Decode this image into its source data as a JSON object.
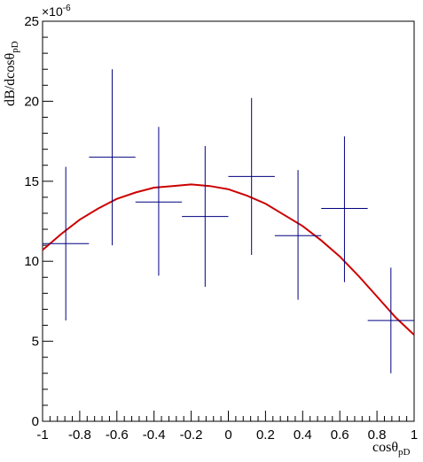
{
  "chart_data": {
    "type": "scatter",
    "xlabel_main": "cosθ",
    "xlabel_sub": "pD",
    "ylabel_main": "dB/dcosθ",
    "ylabel_sub": "pD",
    "y_exponent": "×10",
    "y_exponent_power": "-6",
    "xlim": [
      -1,
      1
    ],
    "ylim": [
      0,
      25
    ],
    "x_ticks": [
      -1,
      -0.8,
      -0.6,
      -0.4,
      -0.2,
      0,
      0.2,
      0.4,
      0.6,
      0.8,
      1
    ],
    "x_tick_labels": [
      "-1",
      "-0.8",
      "-0.6",
      "-0.4",
      "-0.2",
      "0",
      "0.2",
      "0.4",
      "0.6",
      "0.8",
      "1"
    ],
    "y_ticks": [
      0,
      5,
      10,
      15,
      20,
      25
    ],
    "y_tick_labels": [
      "0",
      "5",
      "10",
      "15",
      "20",
      "25"
    ],
    "grid": false,
    "colors": {
      "data": "#000080",
      "fit": "#cc0000",
      "axis": "#000000"
    },
    "series": [
      {
        "kind": "data-points-with-errors",
        "points": [
          {
            "x": -0.875,
            "x_lo": -1.0,
            "x_hi": -0.75,
            "y": 11.1,
            "y_lo": 6.3,
            "y_hi": 15.9
          },
          {
            "x": -0.625,
            "x_lo": -0.75,
            "x_hi": -0.5,
            "y": 16.5,
            "y_lo": 11.0,
            "y_hi": 22.0
          },
          {
            "x": -0.375,
            "x_lo": -0.5,
            "x_hi": -0.25,
            "y": 13.7,
            "y_lo": 9.1,
            "y_hi": 18.4
          },
          {
            "x": -0.125,
            "x_lo": -0.25,
            "x_hi": 0.0,
            "y": 12.8,
            "y_lo": 8.4,
            "y_hi": 17.2
          },
          {
            "x": 0.125,
            "x_lo": 0.0,
            "x_hi": 0.25,
            "y": 15.3,
            "y_lo": 10.4,
            "y_hi": 20.2
          },
          {
            "x": 0.375,
            "x_lo": 0.25,
            "x_hi": 0.5,
            "y": 11.6,
            "y_lo": 7.6,
            "y_hi": 15.7
          },
          {
            "x": 0.625,
            "x_lo": 0.5,
            "x_hi": 0.75,
            "y": 13.3,
            "y_lo": 8.7,
            "y_hi": 17.8
          },
          {
            "x": 0.875,
            "x_lo": 0.75,
            "x_hi": 1.0,
            "y": 6.3,
            "y_lo": 3.0,
            "y_hi": 9.6
          }
        ]
      },
      {
        "kind": "fit-curve",
        "x": [
          -1.0,
          -0.9,
          -0.8,
          -0.7,
          -0.6,
          -0.5,
          -0.4,
          -0.3,
          -0.2,
          -0.1,
          0.0,
          0.1,
          0.2,
          0.3,
          0.4,
          0.5,
          0.6,
          0.7,
          0.8,
          0.9,
          1.0
        ],
        "y": [
          10.7,
          11.7,
          12.6,
          13.3,
          13.9,
          14.3,
          14.6,
          14.7,
          14.8,
          14.7,
          14.5,
          14.1,
          13.6,
          12.9,
          12.2,
          11.3,
          10.3,
          9.1,
          7.8,
          6.5,
          5.4
        ]
      }
    ]
  }
}
